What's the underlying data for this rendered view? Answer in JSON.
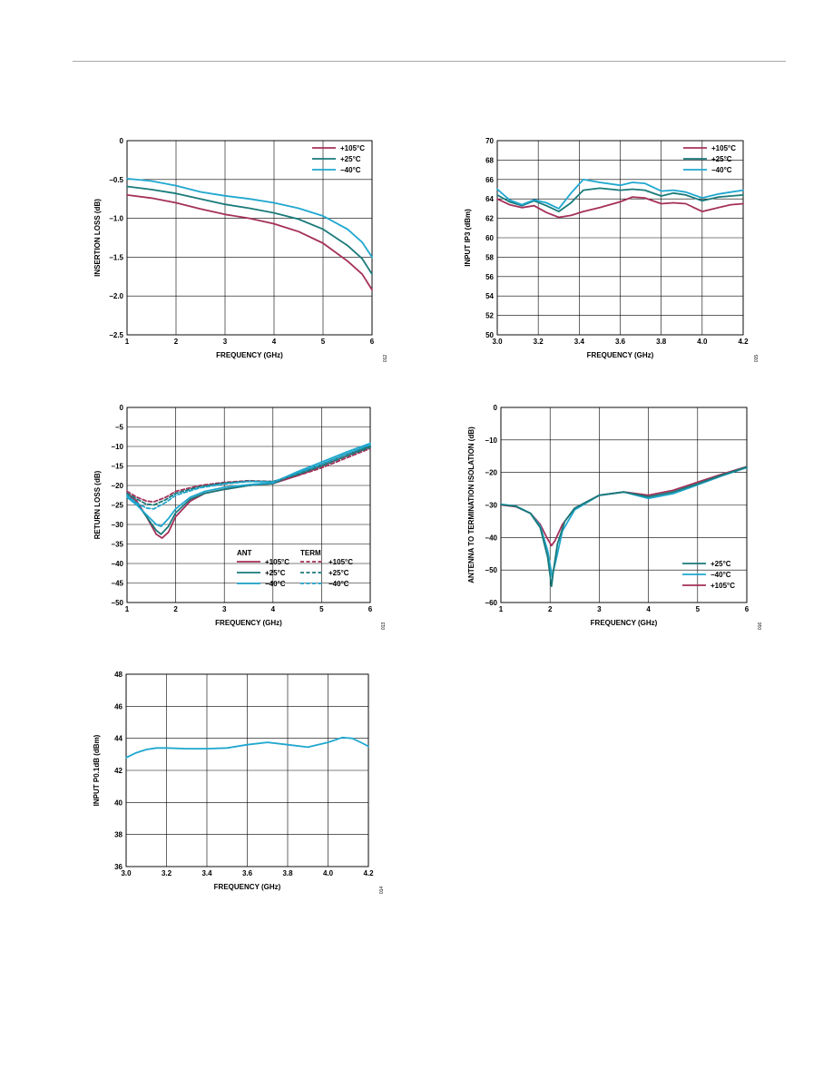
{
  "colors": {
    "hot": "#a4305a",
    "room": "#1a7a7a",
    "cold": "#1fa7cf",
    "grid": "#000000"
  },
  "chart_data": [
    {
      "id": "insertion-loss",
      "type": "line",
      "xlabel": "FREQUENCY (GHz)",
      "ylabel": "INSERTION LOSS (dB)",
      "xlim": [
        1,
        6
      ],
      "ylim": [
        -2.5,
        0
      ],
      "xticks": [
        1,
        2,
        3,
        4,
        5,
        6
      ],
      "yticks": [
        0,
        -0.5,
        -1.0,
        -1.5,
        -2.0,
        -2.5
      ],
      "xtick_labels": [
        "1",
        "2",
        "3",
        "4",
        "5",
        "6"
      ],
      "ytick_labels": [
        "0",
        "−0.5",
        "−1.0",
        "−1.5",
        "−2.0",
        "−2.5"
      ],
      "grid": true,
      "legend": {
        "position": "top-right",
        "items": [
          {
            "label": "+105°C",
            "color": "#a4305a",
            "dash": false
          },
          {
            "label": "+25°C",
            "color": "#1a7a7a",
            "dash": false
          },
          {
            "label": "−40°C",
            "color": "#1fa7cf",
            "dash": false
          }
        ]
      },
      "series": [
        {
          "name": "+105°C",
          "color": "#a4305a",
          "dash": false,
          "x": [
            1,
            1.5,
            2,
            2.5,
            3,
            3.5,
            4,
            4.5,
            5,
            5.5,
            5.8,
            6
          ],
          "y": [
            -0.7,
            -0.74,
            -0.8,
            -0.88,
            -0.95,
            -1.0,
            -1.07,
            -1.17,
            -1.32,
            -1.55,
            -1.72,
            -1.92
          ]
        },
        {
          "name": "+25°C",
          "color": "#1a7a7a",
          "dash": false,
          "x": [
            1,
            1.5,
            2,
            2.5,
            3,
            3.5,
            4,
            4.5,
            5,
            5.5,
            5.8,
            6
          ],
          "y": [
            -0.59,
            -0.63,
            -0.68,
            -0.75,
            -0.82,
            -0.87,
            -0.93,
            -1.01,
            -1.14,
            -1.35,
            -1.52,
            -1.72
          ]
        },
        {
          "name": "−40°C",
          "color": "#1fa7cf",
          "dash": false,
          "x": [
            1,
            1.5,
            2,
            2.5,
            3,
            3.5,
            4,
            4.5,
            5,
            5.5,
            5.8,
            6
          ],
          "y": [
            -0.49,
            -0.52,
            -0.58,
            -0.66,
            -0.71,
            -0.75,
            -0.8,
            -0.87,
            -0.97,
            -1.14,
            -1.31,
            -1.5
          ]
        }
      ],
      "figure_code": "012"
    },
    {
      "id": "input-ip3",
      "type": "line",
      "xlabel": "FREQUENCY (GHz)",
      "ylabel": "INPUT IP3 (dBm)",
      "xlim": [
        3.0,
        4.2
      ],
      "ylim": [
        50,
        70
      ],
      "xticks": [
        3.0,
        3.2,
        3.4,
        3.6,
        3.8,
        4.0,
        4.2
      ],
      "yticks": [
        70,
        68,
        66,
        64,
        62,
        60,
        58,
        56,
        54,
        52,
        50
      ],
      "xtick_labels": [
        "3.0",
        "3.2",
        "3.4",
        "3.6",
        "3.8",
        "4.0",
        "4.2"
      ],
      "ytick_labels": [
        "70",
        "68",
        "66",
        "64",
        "62",
        "60",
        "58",
        "56",
        "54",
        "52",
        "50"
      ],
      "grid": true,
      "legend": {
        "position": "top-right",
        "items": [
          {
            "label": "+105°C",
            "color": "#a4305a",
            "dash": false
          },
          {
            "label": "+25°C",
            "color": "#1a7a7a",
            "dash": false
          },
          {
            "label": "−40°C",
            "color": "#1fa7cf",
            "dash": false
          }
        ]
      },
      "series": [
        {
          "name": "+105°C",
          "color": "#a4305a",
          "dash": false,
          "x": [
            3.0,
            3.06,
            3.12,
            3.18,
            3.24,
            3.3,
            3.36,
            3.42,
            3.5,
            3.6,
            3.66,
            3.72,
            3.8,
            3.86,
            3.92,
            4.0,
            4.08,
            4.14,
            4.2
          ],
          "y": [
            64.0,
            63.4,
            63.1,
            63.3,
            62.6,
            62.1,
            62.3,
            62.7,
            63.1,
            63.7,
            64.2,
            64.1,
            63.5,
            63.6,
            63.5,
            62.7,
            63.1,
            63.4,
            63.5
          ]
        },
        {
          "name": "+25°C",
          "color": "#1a7a7a",
          "dash": false,
          "x": [
            3.0,
            3.06,
            3.12,
            3.18,
            3.24,
            3.3,
            3.36,
            3.42,
            3.5,
            3.6,
            3.66,
            3.72,
            3.8,
            3.86,
            3.92,
            4.0,
            4.08,
            4.14,
            4.2
          ],
          "y": [
            64.4,
            63.7,
            63.3,
            63.8,
            63.3,
            62.7,
            63.6,
            64.9,
            65.1,
            64.9,
            65.0,
            64.9,
            64.3,
            64.6,
            64.4,
            63.8,
            64.2,
            64.3,
            64.4
          ]
        },
        {
          "name": "−40°C",
          "color": "#1fa7cf",
          "dash": false,
          "x": [
            3.0,
            3.06,
            3.12,
            3.18,
            3.24,
            3.3,
            3.36,
            3.42,
            3.5,
            3.6,
            3.66,
            3.72,
            3.8,
            3.86,
            3.92,
            4.0,
            4.08,
            4.14,
            4.2
          ],
          "y": [
            65.0,
            63.9,
            63.4,
            63.9,
            63.6,
            63.0,
            64.6,
            66.0,
            65.7,
            65.4,
            65.7,
            65.6,
            64.8,
            64.9,
            64.7,
            64.1,
            64.5,
            64.7,
            64.9
          ]
        }
      ],
      "figure_code": "015"
    },
    {
      "id": "return-loss",
      "type": "line",
      "xlabel": "FREQUENCY (GHz)",
      "ylabel": "RETURN LOSS (dB)",
      "xlim": [
        1,
        6
      ],
      "ylim": [
        -50,
        0
      ],
      "xticks": [
        1,
        2,
        3,
        4,
        5,
        6
      ],
      "yticks": [
        0,
        -5,
        -10,
        -15,
        -20,
        -25,
        -30,
        -35,
        -40,
        -45,
        -50
      ],
      "xtick_labels": [
        "1",
        "2",
        "3",
        "4",
        "5",
        "6"
      ],
      "ytick_labels": [
        "0",
        "−5",
        "−10",
        "−15",
        "−20",
        "−25",
        "−30",
        "−35",
        "−40",
        "−45",
        "−50"
      ],
      "grid": true,
      "legend": {
        "position": "bottom-right",
        "heading_left": "ANT",
        "heading_right": "TERM",
        "items": [
          {
            "label": "+105°C",
            "color": "#a4305a",
            "dash": false
          },
          {
            "label": "+25°C",
            "color": "#1a7a7a",
            "dash": false
          },
          {
            "label": "−40°C",
            "color": "#1fa7cf",
            "dash": false
          },
          {
            "label": "+105°C",
            "color": "#a4305a",
            "dash": true
          },
          {
            "label": "+25°C",
            "color": "#1a7a7a",
            "dash": true
          },
          {
            "label": "−40°C",
            "color": "#1fa7cf",
            "dash": true
          }
        ]
      },
      "series": [
        {
          "name": "+105°C",
          "color": "#a4305a",
          "dash": false,
          "x": [
            1,
            1.2,
            1.4,
            1.6,
            1.72,
            1.85,
            2.0,
            2.3,
            2.6,
            3.0,
            3.5,
            4.0,
            4.5,
            5.0,
            5.5,
            6.0
          ],
          "y": [
            -22,
            -24,
            -28,
            -32.5,
            -33.5,
            -32,
            -28,
            -24,
            -22,
            -21,
            -20,
            -19.5,
            -17.5,
            -15,
            -12.5,
            -10
          ]
        },
        {
          "name": "+25°C",
          "color": "#1a7a7a",
          "dash": false,
          "x": [
            1,
            1.2,
            1.4,
            1.6,
            1.7,
            1.85,
            2.0,
            2.3,
            2.6,
            3.0,
            3.5,
            4.0,
            4.5,
            5.0,
            5.5,
            6.0
          ],
          "y": [
            -22.5,
            -24.5,
            -28,
            -31.5,
            -32.5,
            -30.5,
            -27,
            -23.5,
            -22,
            -21,
            -20,
            -19.5,
            -17,
            -14.5,
            -12,
            -9.8
          ]
        },
        {
          "name": "−40°C",
          "color": "#1fa7cf",
          "dash": false,
          "x": [
            1,
            1.2,
            1.4,
            1.6,
            1.7,
            1.85,
            2.0,
            2.3,
            2.6,
            3.0,
            3.5,
            4.0,
            4.5,
            5.0,
            5.5,
            6.0
          ],
          "y": [
            -23,
            -25,
            -27.5,
            -30,
            -30.5,
            -28.5,
            -26,
            -23,
            -21.5,
            -20.5,
            -19.8,
            -19.3,
            -16.5,
            -14,
            -11.5,
            -9.2
          ]
        },
        {
          "name": "+105°C",
          "color": "#a4305a",
          "dash": true,
          "x": [
            1,
            1.2,
            1.4,
            1.55,
            1.8,
            2.0,
            2.5,
            3.0,
            3.5,
            4.0,
            4.5,
            5.0,
            5.5,
            6.0
          ],
          "y": [
            -21.5,
            -23,
            -24,
            -24.2,
            -23,
            -21.5,
            -20,
            -19.2,
            -18.8,
            -19,
            -17.5,
            -15.5,
            -13,
            -10.5
          ]
        },
        {
          "name": "+25°C",
          "color": "#1a7a7a",
          "dash": true,
          "x": [
            1,
            1.2,
            1.4,
            1.55,
            1.8,
            2.0,
            2.5,
            3.0,
            3.5,
            4.0,
            4.5,
            5.0,
            5.5,
            6.0
          ],
          "y": [
            -22,
            -23.5,
            -24.8,
            -25,
            -23.6,
            -22,
            -20.3,
            -19.4,
            -18.9,
            -19,
            -17.2,
            -15,
            -12.5,
            -10.2
          ]
        },
        {
          "name": "−40°C",
          "color": "#1fa7cf",
          "dash": true,
          "x": [
            1,
            1.2,
            1.4,
            1.55,
            1.8,
            2.0,
            2.5,
            3.0,
            3.5,
            4.0,
            4.5,
            5.0,
            5.5,
            6.0
          ],
          "y": [
            -22.5,
            -24.5,
            -25.8,
            -26,
            -24.3,
            -22.5,
            -20.6,
            -19.6,
            -19,
            -19.1,
            -16.8,
            -14.5,
            -12,
            -9.5
          ]
        }
      ],
      "figure_code": "013"
    },
    {
      "id": "isolation",
      "type": "line",
      "xlabel": "FREQUENCY (GHz)",
      "ylabel": "ANTENNA TO TERMINATION ISOLATION (dB)",
      "xlim": [
        1,
        6
      ],
      "ylim": [
        -60,
        0
      ],
      "xticks": [
        1,
        2,
        3,
        4,
        5,
        6
      ],
      "yticks": [
        0,
        -10,
        -20,
        -30,
        -40,
        -50,
        -60
      ],
      "xtick_labels": [
        "1",
        "2",
        "3",
        "4",
        "5",
        "6"
      ],
      "ytick_labels": [
        "0",
        "−10",
        "−20",
        "−30",
        "−40",
        "−50",
        "−60"
      ],
      "grid": true,
      "legend": {
        "position": "bottom-right",
        "items": [
          {
            "label": "+25°C",
            "color": "#1a7a7a",
            "dash": false
          },
          {
            "label": "−40°C",
            "color": "#1fa7cf",
            "dash": false
          },
          {
            "label": "+105°C",
            "color": "#a4305a",
            "dash": false
          }
        ]
      },
      "series": [
        {
          "name": "+105°C",
          "color": "#a4305a",
          "dash": false,
          "x": [
            1,
            1.3,
            1.6,
            1.8,
            1.95,
            2.03,
            2.1,
            2.25,
            2.5,
            3.0,
            3.5,
            4.0,
            4.5,
            5.0,
            5.5,
            6.0
          ],
          "y": [
            -30,
            -30.5,
            -32.5,
            -36,
            -40.5,
            -42.5,
            -41,
            -36,
            -31,
            -27,
            -26,
            -27,
            -25.5,
            -23,
            -20.5,
            -18.2
          ]
        },
        {
          "name": "−40°C",
          "color": "#1fa7cf",
          "dash": false,
          "x": [
            1,
            1.3,
            1.6,
            1.8,
            1.95,
            2.04,
            2.12,
            2.25,
            2.5,
            3.0,
            3.5,
            4.0,
            4.5,
            5.0,
            5.5,
            6.0
          ],
          "y": [
            -29.8,
            -30.3,
            -32.5,
            -36.5,
            -44,
            -52,
            -47,
            -38,
            -31.5,
            -27,
            -26,
            -28,
            -26.5,
            -23.8,
            -21,
            -18.5
          ]
        },
        {
          "name": "+25°C",
          "color": "#1a7a7a",
          "dash": false,
          "x": [
            1,
            1.3,
            1.6,
            1.8,
            1.95,
            2.03,
            2.07,
            2.15,
            2.3,
            2.5,
            3.0,
            3.5,
            4.0,
            4.5,
            5.0,
            5.5,
            6.0
          ],
          "y": [
            -29.9,
            -30.4,
            -32.6,
            -37,
            -46,
            -55,
            -50,
            -42,
            -35,
            -31,
            -27,
            -26,
            -27.5,
            -26,
            -23.5,
            -20.8,
            -18.3
          ]
        }
      ],
      "figure_code": "016"
    },
    {
      "id": "input-p01db",
      "type": "line",
      "xlabel": "FREQUENCY (GHz)",
      "ylabel": "INPUT P0.1dB (dBm)",
      "xlim": [
        3.0,
        4.2
      ],
      "ylim": [
        36,
        48
      ],
      "xticks": [
        3.0,
        3.2,
        3.4,
        3.6,
        3.8,
        4.0,
        4.2
      ],
      "yticks": [
        48,
        46,
        44,
        42,
        40,
        38,
        36
      ],
      "xtick_labels": [
        "3.0",
        "3.2",
        "3.4",
        "3.6",
        "3.8",
        "4.0",
        "4.2"
      ],
      "ytick_labels": [
        "48",
        "46",
        "44",
        "42",
        "40",
        "38",
        "36"
      ],
      "grid": true,
      "series": [
        {
          "color": "#1fa7cf",
          "dash": false,
          "x": [
            3.0,
            3.05,
            3.1,
            3.15,
            3.2,
            3.3,
            3.4,
            3.5,
            3.6,
            3.7,
            3.8,
            3.9,
            4.0,
            4.07,
            4.12,
            4.17,
            4.2
          ],
          "y": [
            42.8,
            43.1,
            43.3,
            43.4,
            43.4,
            43.35,
            43.35,
            43.4,
            43.6,
            43.75,
            43.6,
            43.45,
            43.75,
            44.05,
            44.0,
            43.7,
            43.5
          ]
        }
      ],
      "figure_code": "014"
    }
  ]
}
